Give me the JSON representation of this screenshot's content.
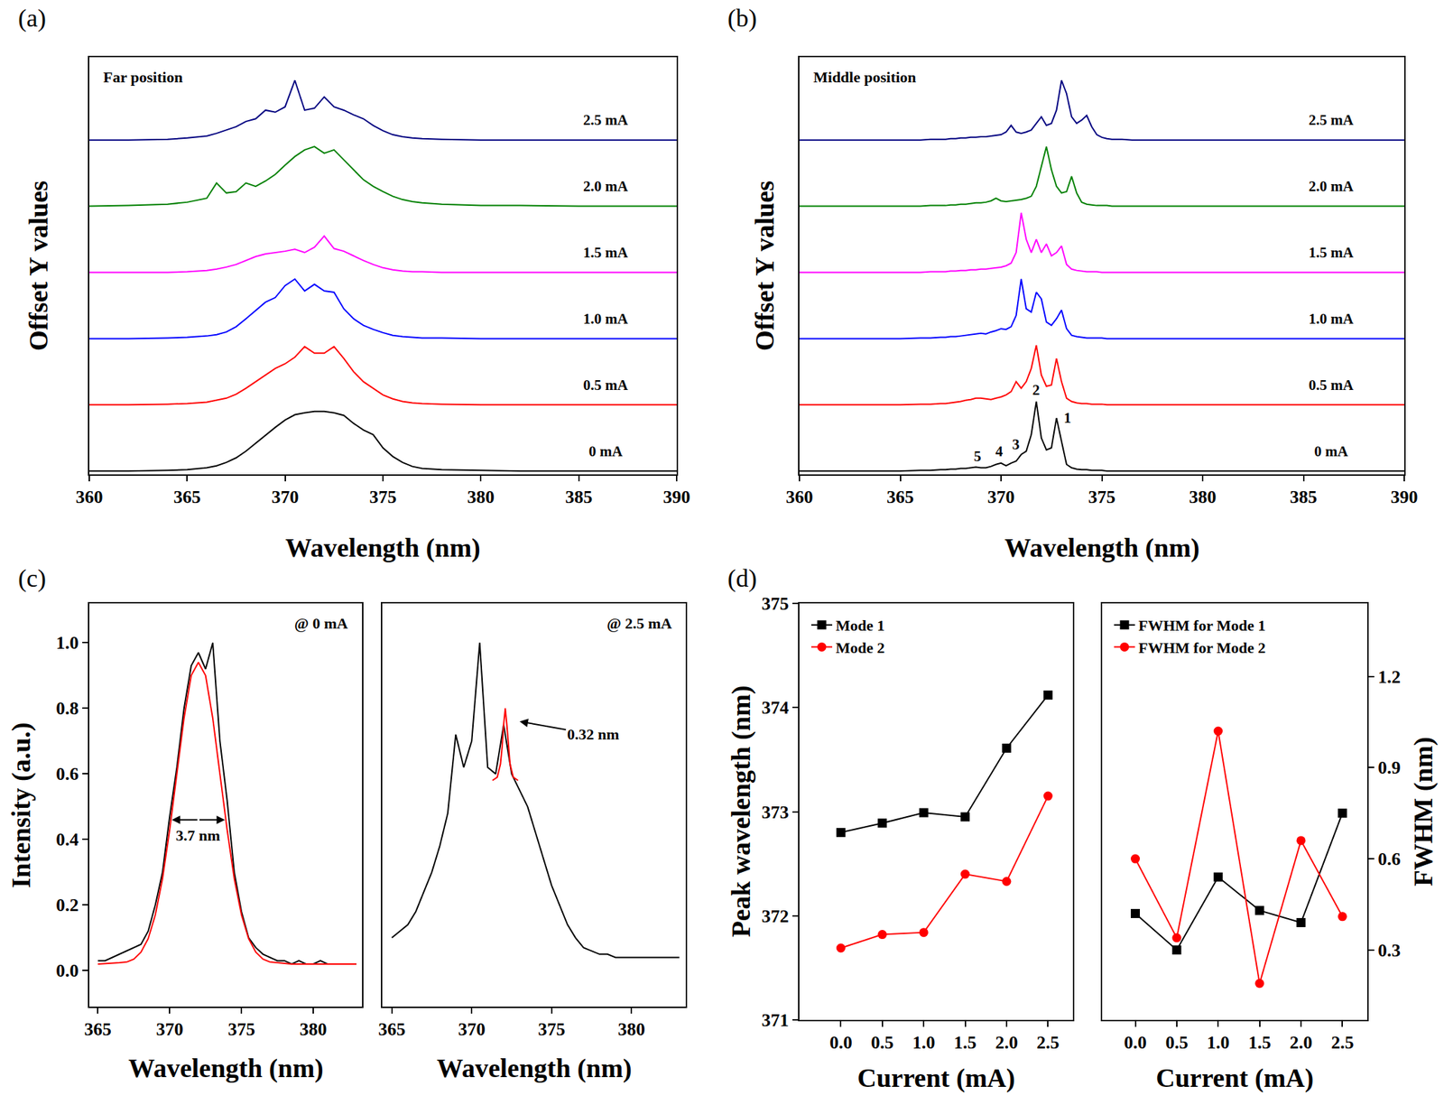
{
  "chart_data": [
    {
      "type": "line",
      "panel": "(a)",
      "title": "Far position",
      "x_label": "Wavelength (nm)",
      "y_label": "Offset Y values",
      "xlim": [
        360,
        390
      ],
      "xticks": [
        360,
        365,
        370,
        375,
        380,
        385,
        390
      ],
      "tick_labels": "x",
      "grid": false,
      "x": [
        360,
        362,
        364,
        365,
        366,
        366.5,
        367,
        367.5,
        368,
        368.5,
        369,
        369.5,
        370,
        370.5,
        371,
        371.5,
        372,
        372.5,
        373,
        373.5,
        374,
        374.5,
        375,
        375.5,
        376,
        376.5,
        377,
        378,
        380,
        382,
        385,
        390
      ],
      "series": [
        {
          "name": "0 mA",
          "color": "#000000",
          "values": [
            0,
            0,
            0.01,
            0.02,
            0.05,
            0.08,
            0.13,
            0.2,
            0.3,
            0.42,
            0.55,
            0.66,
            0.77,
            0.85,
            0.88,
            0.9,
            0.9,
            0.88,
            0.84,
            0.72,
            0.62,
            0.55,
            0.35,
            0.22,
            0.13,
            0.07,
            0.04,
            0.02,
            0.01,
            0,
            0,
            0
          ]
        },
        {
          "name": "0.5 mA",
          "color": "#ff0000",
          "values": [
            0,
            0,
            0.01,
            0.02,
            0.04,
            0.07,
            0.1,
            0.16,
            0.25,
            0.35,
            0.45,
            0.55,
            0.62,
            0.72,
            0.88,
            0.78,
            0.78,
            0.88,
            0.7,
            0.5,
            0.35,
            0.25,
            0.15,
            0.09,
            0.05,
            0.03,
            0.02,
            0.01,
            0,
            0,
            0,
            0
          ]
        },
        {
          "name": "1.0 mA",
          "color": "#0000ff",
          "values": [
            0,
            0,
            0.01,
            0.02,
            0.04,
            0.06,
            0.1,
            0.18,
            0.3,
            0.42,
            0.55,
            0.62,
            0.8,
            0.9,
            0.72,
            0.82,
            0.72,
            0.7,
            0.45,
            0.3,
            0.2,
            0.14,
            0.09,
            0.05,
            0.03,
            0.02,
            0.01,
            0.01,
            0,
            0,
            0,
            0
          ]
        },
        {
          "name": "1.5 mA",
          "color": "#ff00ff",
          "values": [
            0,
            0,
            0,
            0.01,
            0.03,
            0.05,
            0.08,
            0.12,
            0.18,
            0.24,
            0.28,
            0.3,
            0.32,
            0.35,
            0.3,
            0.38,
            0.55,
            0.36,
            0.32,
            0.25,
            0.18,
            0.12,
            0.07,
            0.04,
            0.02,
            0.01,
            0.01,
            0,
            0,
            0,
            0,
            0
          ]
        },
        {
          "name": "2.0 mA",
          "color": "#008000",
          "values": [
            0,
            0.01,
            0.03,
            0.06,
            0.12,
            0.35,
            0.2,
            0.22,
            0.35,
            0.3,
            0.38,
            0.48,
            0.62,
            0.75,
            0.85,
            0.9,
            0.8,
            0.85,
            0.7,
            0.55,
            0.4,
            0.3,
            0.22,
            0.15,
            0.1,
            0.07,
            0.05,
            0.03,
            0.01,
            0.01,
            0,
            0
          ]
        },
        {
          "name": "2.5 mA",
          "color": "#000080",
          "values": [
            0,
            0,
            0.01,
            0.03,
            0.06,
            0.1,
            0.15,
            0.2,
            0.28,
            0.32,
            0.45,
            0.42,
            0.5,
            0.9,
            0.45,
            0.48,
            0.65,
            0.5,
            0.45,
            0.38,
            0.32,
            0.22,
            0.14,
            0.08,
            0.05,
            0.03,
            0.02,
            0.01,
            0,
            0,
            0,
            0
          ]
        }
      ]
    },
    {
      "type": "line",
      "panel": "(b)",
      "title": "Middle position",
      "x_label": "Wavelength (nm)",
      "y_label": "Offset Y values",
      "xlim": [
        360,
        390
      ],
      "xticks": [
        360,
        365,
        370,
        375,
        380,
        385,
        390
      ],
      "tick_labels": "x",
      "grid": false,
      "x": [
        360,
        362,
        364,
        365,
        366,
        366.5,
        367,
        367.25,
        367.5,
        367.75,
        368,
        368.25,
        368.5,
        368.75,
        369,
        369.25,
        369.5,
        369.75,
        370,
        370.25,
        370.5,
        370.75,
        371,
        371.25,
        371.5,
        371.75,
        372,
        372.25,
        372.5,
        372.75,
        373,
        373.25,
        373.5,
        373.75,
        374,
        374.25,
        374.5,
        374.75,
        375,
        375.25,
        375.5,
        375.75,
        376,
        376.5,
        377,
        378,
        380,
        382,
        385,
        390
      ],
      "series": [
        {
          "name": "0 mA",
          "color": "#000000",
          "values": [
            0,
            0,
            0,
            0,
            0.01,
            0.01,
            0.02,
            0.02,
            0.03,
            0.03,
            0.04,
            0.04,
            0.05,
            0.06,
            0.05,
            0.05,
            0.07,
            0.1,
            0.12,
            0.08,
            0.12,
            0.15,
            0.25,
            0.3,
            0.55,
            1.05,
            0.5,
            0.32,
            0.35,
            0.8,
            0.45,
            0.1,
            0.05,
            0.03,
            0.02,
            0.02,
            0.01,
            0.01,
            0.01,
            0,
            0,
            0,
            0,
            0,
            0,
            0,
            0,
            0,
            0,
            0
          ]
        },
        {
          "name": "0.5 mA",
          "color": "#ff0000",
          "values": [
            0,
            0,
            0,
            0,
            0.01,
            0.01,
            0.02,
            0.02,
            0.03,
            0.04,
            0.05,
            0.07,
            0.08,
            0.1,
            0.1,
            0.09,
            0.08,
            0.1,
            0.12,
            0.15,
            0.2,
            0.35,
            0.25,
            0.35,
            0.55,
            0.9,
            0.45,
            0.28,
            0.3,
            0.7,
            0.35,
            0.1,
            0.05,
            0.03,
            0.02,
            0.02,
            0.01,
            0.01,
            0.01,
            0,
            0,
            0,
            0,
            0,
            0,
            0,
            0,
            0,
            0,
            0
          ]
        },
        {
          "name": "1.0 mA",
          "color": "#0000ff",
          "values": [
            0,
            0,
            0,
            0,
            0.01,
            0.01,
            0.02,
            0.02,
            0.03,
            0.03,
            0.04,
            0.05,
            0.06,
            0.07,
            0.08,
            0.07,
            0.1,
            0.12,
            0.15,
            0.14,
            0.18,
            0.35,
            0.9,
            0.45,
            0.4,
            0.7,
            0.6,
            0.25,
            0.2,
            0.3,
            0.43,
            0.15,
            0.05,
            0.03,
            0.02,
            0.01,
            0.01,
            0.01,
            0.01,
            0,
            0,
            0,
            0,
            0,
            0,
            0,
            0,
            0,
            0,
            0
          ]
        },
        {
          "name": "1.5 mA",
          "color": "#ff00ff",
          "values": [
            0,
            0,
            0,
            0,
            0,
            0.01,
            0.01,
            0.01,
            0.02,
            0.02,
            0.03,
            0.03,
            0.04,
            0.04,
            0.05,
            0.05,
            0.06,
            0.07,
            0.08,
            0.1,
            0.14,
            0.3,
            0.9,
            0.5,
            0.3,
            0.5,
            0.3,
            0.43,
            0.25,
            0.3,
            0.4,
            0.12,
            0.05,
            0.03,
            0.02,
            0.01,
            0.01,
            0.01,
            0,
            0,
            0,
            0,
            0,
            0,
            0,
            0,
            0,
            0,
            0,
            0
          ]
        },
        {
          "name": "2.0 mA",
          "color": "#008000",
          "values": [
            0,
            0,
            0,
            0,
            0,
            0.01,
            0.01,
            0.01,
            0.02,
            0.02,
            0.03,
            0.03,
            0.04,
            0.05,
            0.05,
            0.06,
            0.08,
            0.12,
            0.08,
            0.07,
            0.08,
            0.09,
            0.1,
            0.12,
            0.15,
            0.3,
            0.6,
            0.9,
            0.55,
            0.3,
            0.2,
            0.22,
            0.45,
            0.2,
            0.06,
            0.03,
            0.02,
            0.01,
            0.01,
            0.01,
            0,
            0,
            0,
            0,
            0,
            0,
            0,
            0,
            0,
            0
          ]
        },
        {
          "name": "2.5 mA",
          "color": "#000080",
          "values": [
            0,
            0,
            0,
            0,
            0,
            0.01,
            0.01,
            0.01,
            0.02,
            0.02,
            0.03,
            0.03,
            0.04,
            0.04,
            0.05,
            0.05,
            0.06,
            0.07,
            0.08,
            0.12,
            0.22,
            0.12,
            0.1,
            0.12,
            0.15,
            0.25,
            0.35,
            0.22,
            0.25,
            0.45,
            0.9,
            0.7,
            0.35,
            0.25,
            0.3,
            0.37,
            0.2,
            0.08,
            0.04,
            0.02,
            0.01,
            0.01,
            0.01,
            0,
            0,
            0,
            0,
            0,
            0,
            0
          ]
        }
      ],
      "annotations": [
        {
          "text": "1",
          "x": 373.3,
          "y": 0.8
        },
        {
          "text": "2",
          "x": 371.75,
          "y": 1.22
        },
        {
          "text": "3",
          "x": 370.75,
          "y": 0.4
        },
        {
          "text": "4",
          "x": 369.9,
          "y": 0.3
        },
        {
          "text": "5",
          "x": 368.85,
          "y": 0.22
        }
      ]
    },
    {
      "type": "line",
      "panel": "(c)",
      "title": "@ 0 mA",
      "x_label": "Wavelength (nm)",
      "y_label": "Intensity (a.u.)",
      "xlim": [
        364.4,
        383.4
      ],
      "xticks": [
        365,
        370,
        375,
        380
      ],
      "ylim": [
        -0.11,
        1.12
      ],
      "yticks": [
        {
          "value": 0,
          "label": "0.0"
        },
        0.2,
        0.4,
        0.6,
        0.8,
        {
          "value": 1,
          "label": "1.0"
        }
      ],
      "grid": false,
      "x": [
        365,
        365.5,
        366,
        366.5,
        367,
        367.5,
        368,
        368.5,
        369,
        369.5,
        370,
        370.5,
        371,
        371.5,
        372,
        372.5,
        373,
        373.5,
        374,
        374.5,
        375,
        375.5,
        376,
        376.5,
        377,
        377.5,
        378,
        378.5,
        379,
        379.5,
        380,
        380.5,
        381,
        381.5,
        382,
        382.5,
        383
      ],
      "series": [
        {
          "color": "#000000",
          "values": [
            0.03,
            0.03,
            0.04,
            0.05,
            0.06,
            0.07,
            0.08,
            0.12,
            0.2,
            0.3,
            0.47,
            0.62,
            0.8,
            0.93,
            0.97,
            0.92,
            1.0,
            0.7,
            0.52,
            0.3,
            0.18,
            0.1,
            0.07,
            0.05,
            0.04,
            0.03,
            0.03,
            0.02,
            0.03,
            0.02,
            0.02,
            0.03,
            0.02,
            0.02,
            0.02,
            0.02,
            0.02
          ]
        },
        {
          "color": "#ff0000",
          "values": [
            0.02,
            0.021,
            0.022,
            0.024,
            0.026,
            0.035,
            0.056,
            0.097,
            0.17,
            0.28,
            0.43,
            0.6,
            0.77,
            0.9,
            0.94,
            0.9,
            0.77,
            0.6,
            0.43,
            0.28,
            0.17,
            0.097,
            0.056,
            0.035,
            0.026,
            0.024,
            0.022,
            0.02,
            0.02,
            0.02,
            0.02,
            0.02,
            0.02,
            0.02,
            0.02,
            0.02,
            0.02
          ]
        }
      ],
      "annotations": [
        {
          "text": "3.7 nm",
          "x": 372,
          "y": 0.46,
          "width": 3.7
        }
      ]
    },
    {
      "type": "line",
      "title": "@ 2.5 mA",
      "x_label": "Wavelength (nm)",
      "xlim": [
        364.4,
        383.4
      ],
      "xticks": [
        365,
        370,
        375,
        380
      ],
      "ylim": [
        -0.11,
        1.12
      ],
      "tick_labels": "x",
      "grid": false,
      "x": [
        365,
        365.5,
        366,
        366.5,
        367,
        367.5,
        368,
        368.5,
        369,
        369.5,
        370,
        370.5,
        371,
        371.5,
        372,
        372.5,
        373,
        373.5,
        374,
        374.5,
        375,
        375.5,
        376,
        376.5,
        377,
        377.5,
        378,
        378.5,
        379,
        379.5,
        380,
        380.5,
        381,
        381.5,
        382,
        382.5,
        383
      ],
      "series": [
        {
          "color": "#000000",
          "values": [
            0.1,
            0.12,
            0.14,
            0.18,
            0.24,
            0.3,
            0.38,
            0.48,
            0.72,
            0.62,
            0.7,
            1.0,
            0.62,
            0.6,
            0.75,
            0.6,
            0.55,
            0.5,
            0.42,
            0.34,
            0.26,
            0.2,
            0.14,
            0.1,
            0.07,
            0.06,
            0.05,
            0.05,
            0.04,
            0.04,
            0.04,
            0.04,
            0.04,
            0.04,
            0.04,
            0.04,
            0.04
          ]
        },
        {
          "color": "#ff0000",
          "x": [
            371.3,
            371.6,
            371.8,
            371.9,
            372,
            372.1,
            372.2,
            372.3,
            372.4,
            372.6,
            372.9
          ],
          "values": [
            0.58,
            0.59,
            0.63,
            0.68,
            0.75,
            0.8,
            0.75,
            0.68,
            0.63,
            0.59,
            0.58
          ]
        }
      ],
      "annotations": [
        {
          "text": "0.32 nm",
          "x": 373.0,
          "y": 0.76,
          "text_x": 377.6,
          "text_y": 0.72
        }
      ]
    },
    {
      "type": "line",
      "panel": "(d)",
      "x_label": "Current (mA)",
      "y_label": "Peak wavelength (nm)",
      "xlim": [
        -0.5,
        2.8
      ],
      "xticks": [
        {
          "value": 0,
          "label": "0.0"
        },
        0.5,
        {
          "value": 1,
          "label": "1.0"
        },
        1.5,
        {
          "value": 2,
          "label": "2.0"
        },
        2.5
      ],
      "ylim": [
        371,
        375
      ],
      "yticks": [
        371,
        372,
        373,
        374,
        375
      ],
      "legend": "upper left",
      "grid": false,
      "x": [
        0,
        0.5,
        1,
        1.5,
        2,
        2.5
      ],
      "series": [
        {
          "name": "Mode 1",
          "color": "#000000",
          "marker": "square",
          "values": [
            372.8,
            372.89,
            372.99,
            372.95,
            373.61,
            374.12
          ]
        },
        {
          "name": "Mode 2",
          "color": "#ff0000",
          "marker": "circle",
          "values": [
            371.69,
            371.82,
            371.84,
            372.4,
            372.33,
            373.15
          ]
        }
      ]
    },
    {
      "type": "line",
      "x_label": "Current (mA)",
      "y_label": "FWHM (nm)",
      "xlim": [
        -0.4,
        2.8
      ],
      "xticks": [
        {
          "value": 0,
          "label": "0.0"
        },
        0.5,
        {
          "value": 1,
          "label": "1.0"
        },
        1.5,
        {
          "value": 2,
          "label": "2.0"
        },
        2.5
      ],
      "y2lim": [
        0.07,
        1.44
      ],
      "y2ticks": [
        0.3,
        0.6,
        0.9,
        1.2
      ],
      "legend": "upper left",
      "grid": false,
      "x": [
        0,
        0.5,
        1,
        1.5,
        2,
        2.5
      ],
      "series": [
        {
          "name": "FWHM for Mode 1",
          "color": "#000000",
          "marker": "square",
          "axis": "y2",
          "values": [
            0.42,
            0.3,
            0.54,
            0.43,
            0.39,
            0.75
          ]
        },
        {
          "name": "FWHM for Mode 2",
          "color": "#ff0000",
          "marker": "circle",
          "axis": "y2",
          "values": [
            0.6,
            0.34,
            1.02,
            0.19,
            0.66,
            0.41
          ]
        }
      ]
    }
  ]
}
